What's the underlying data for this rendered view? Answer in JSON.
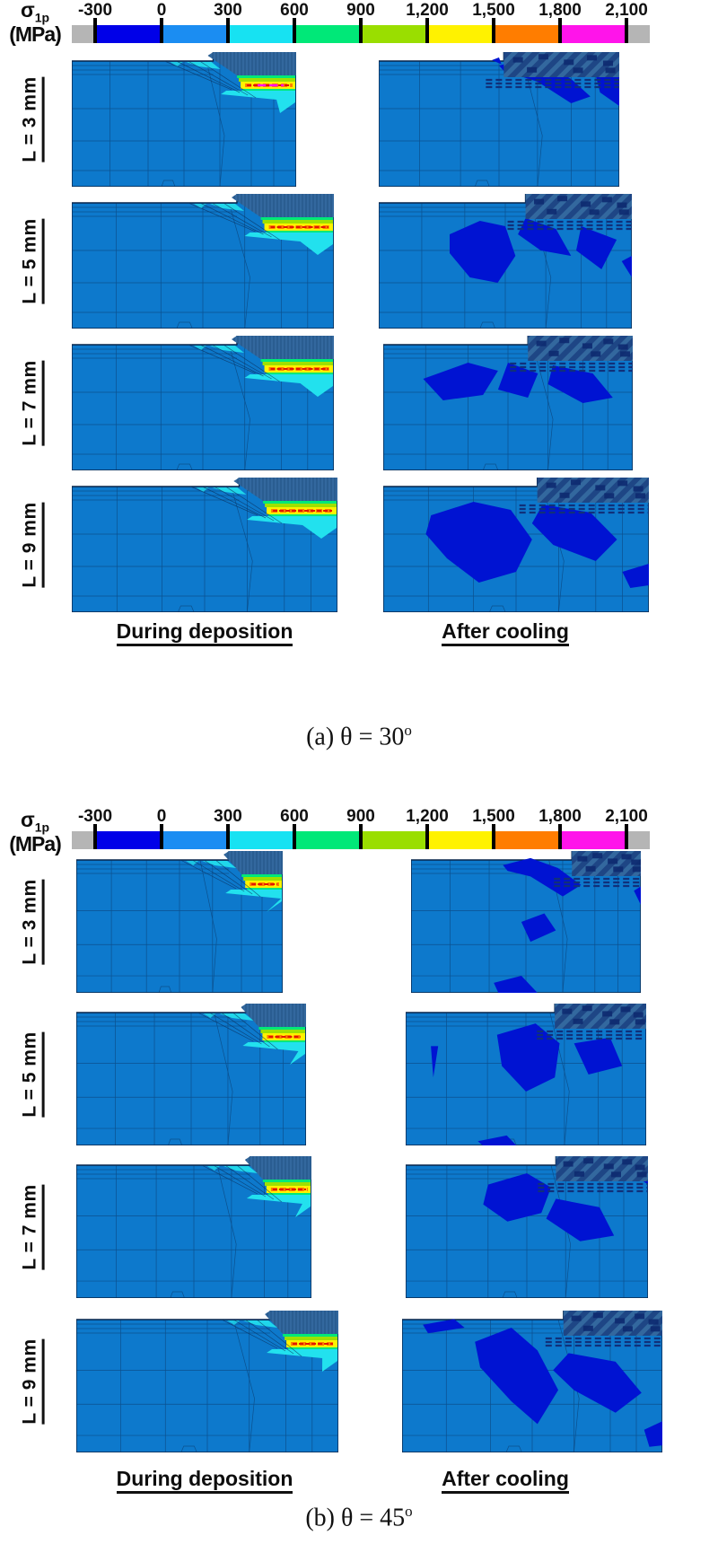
{
  "figure": {
    "colorbar": {
      "sigma": "σ",
      "sigma_sub": "1p",
      "unit": "(MPa)",
      "ticks": [
        "-300",
        "0",
        "300",
        "600",
        "900",
        "1,200",
        "1,500",
        "1,800",
        "2,100"
      ],
      "segment_colors": [
        "#0000e8",
        "#1b8df2",
        "#17e2f2",
        "#00e878",
        "#9ade00",
        "#fff200",
        "#ff7d00",
        "#ff14ea"
      ],
      "cap_color": "#b5b5b5",
      "tick_color": "#111111"
    },
    "row_labels": [
      "L = 3 mm",
      "L = 5 mm",
      "L = 7 mm",
      "L = 9 mm"
    ],
    "column_labels": {
      "left": "During deposition",
      "right": "After cooling"
    },
    "panels": [
      {
        "id": "a",
        "caption_prefix": "(a) θ = 30",
        "caption_sup": "o",
        "angle_deg": 30
      },
      {
        "id": "b",
        "caption_prefix": "(b) θ = 45",
        "caption_sup": "o",
        "angle_deg": 45
      }
    ],
    "colors": {
      "plot_base": "#0d79cc",
      "compressive_dark_blue": "#0013d2",
      "deposit_mesh_blue": "#33689e",
      "hatch_dark": "#0d2a70",
      "cyan": "#22e1ee",
      "green": "#00e878",
      "yellow_green": "#9fe000",
      "yellow": "#fff200",
      "orange": "#ff7d00",
      "hot_red": "#e01800",
      "magenta": "#ff10f0",
      "mesh_line": "#0a2f5c",
      "outline": "#06244a"
    }
  }
}
